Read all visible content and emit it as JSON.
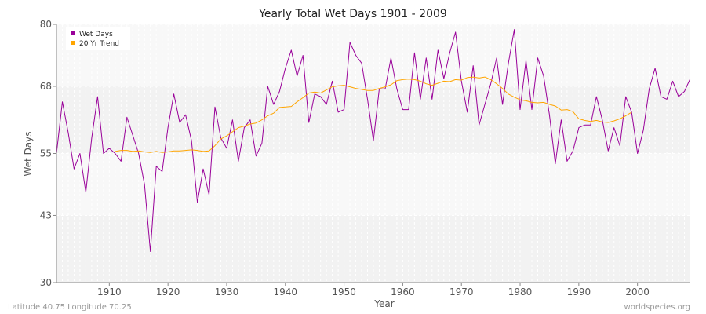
{
  "chart_data": {
    "type": "line",
    "title": "Yearly Total Wet Days 1901 - 2009",
    "xlabel": "Year",
    "ylabel": "Wet Days",
    "xlim": [
      1901,
      2009
    ],
    "ylim": [
      30,
      80
    ],
    "yticks": [
      30,
      43,
      55,
      68,
      80
    ],
    "xticks": [
      1910,
      1920,
      1930,
      1940,
      1950,
      1960,
      1970,
      1980,
      1990,
      2000
    ],
    "grid": true,
    "legend_position": "top-left",
    "colors": {
      "wet_days": "#990099",
      "trend": "#FFA500"
    },
    "series": [
      {
        "name": "Wet Days",
        "x": [
          1901,
          1902,
          1903,
          1904,
          1905,
          1906,
          1907,
          1908,
          1909,
          1910,
          1911,
          1912,
          1913,
          1914,
          1915,
          1916,
          1917,
          1918,
          1919,
          1920,
          1921,
          1922,
          1923,
          1924,
          1925,
          1926,
          1927,
          1928,
          1929,
          1930,
          1931,
          1932,
          1933,
          1934,
          1935,
          1936,
          1937,
          1938,
          1939,
          1940,
          1941,
          1942,
          1943,
          1944,
          1945,
          1946,
          1947,
          1948,
          1949,
          1950,
          1951,
          1952,
          1953,
          1954,
          1955,
          1956,
          1957,
          1958,
          1959,
          1960,
          1961,
          1962,
          1963,
          1964,
          1965,
          1966,
          1967,
          1968,
          1969,
          1970,
          1971,
          1972,
          1973,
          1974,
          1975,
          1976,
          1977,
          1978,
          1979,
          1980,
          1981,
          1982,
          1983,
          1984,
          1985,
          1986,
          1987,
          1988,
          1989,
          1990,
          1991,
          1992,
          1993,
          1994,
          1995,
          1996,
          1997,
          1998,
          1999,
          2000,
          2001,
          2002,
          2003,
          2004,
          2005,
          2006,
          2007,
          2008,
          2009
        ],
        "values": [
          55,
          65,
          59,
          52,
          55,
          47.5,
          58,
          66,
          55,
          56,
          55,
          53.5,
          62,
          58.5,
          55,
          49,
          36,
          52.5,
          51.5,
          60,
          66.5,
          61,
          62.5,
          57.5,
          45.5,
          52,
          47,
          64,
          58,
          56,
          61.5,
          53.5,
          60,
          61.5,
          54.5,
          57,
          68,
          64.5,
          67,
          71.5,
          75,
          70,
          74,
          61,
          66.5,
          66,
          64.5,
          69,
          63,
          63.5,
          76.5,
          74,
          72.5,
          65.5,
          57.5,
          67.5,
          67.5,
          73.5,
          67.5,
          63.5,
          63.5,
          74.5,
          65.5,
          73.5,
          65.5,
          75,
          69.5,
          74.5,
          78.5,
          69,
          63,
          72,
          60.5,
          64.5,
          68.5,
          73.5,
          64.5,
          72.5,
          79,
          63.5,
          73,
          63.5,
          73.5,
          70,
          62.5,
          53,
          61.5,
          53.5,
          55.5,
          60,
          60.5,
          60.5,
          66,
          61.5,
          55.5,
          60,
          56.5,
          66,
          63,
          55,
          59.5,
          67.5,
          71.5,
          66,
          65.5,
          69,
          66,
          67,
          69.5
        ]
      },
      {
        "name": "20 Yr Trend",
        "x": [
          1911,
          1912,
          1913,
          1914,
          1915,
          1916,
          1917,
          1918,
          1919,
          1920,
          1921,
          1922,
          1923,
          1924,
          1925,
          1926,
          1927,
          1928,
          1929,
          1930,
          1931,
          1932,
          1933,
          1934,
          1935,
          1936,
          1937,
          1938,
          1939,
          1940,
          1941,
          1942,
          1943,
          1944,
          1945,
          1946,
          1947,
          1948,
          1949,
          1950,
          1951,
          1952,
          1953,
          1954,
          1955,
          1956,
          1957,
          1958,
          1959,
          1960,
          1961,
          1962,
          1963,
          1964,
          1965,
          1966,
          1967,
          1968,
          1969,
          1970,
          1971,
          1972,
          1973,
          1974,
          1975,
          1976,
          1977,
          1978,
          1979,
          1980,
          1981,
          1982,
          1983,
          1984,
          1985,
          1986,
          1987,
          1988,
          1989,
          1990,
          1991,
          1992,
          1993,
          1994,
          1995,
          1996,
          1997,
          1998,
          1999
        ],
        "values": [
          55.4,
          55.6,
          55.6,
          55.4,
          55.5,
          55.3,
          55.2,
          55.4,
          55.2,
          55.3,
          55.5,
          55.5,
          55.6,
          55.7,
          55.6,
          55.4,
          55.5,
          56.5,
          57.8,
          58.4,
          59.2,
          60.0,
          60.3,
          60.7,
          60.9,
          61.5,
          62.3,
          62.8,
          63.9,
          64.0,
          64.1,
          65.0,
          65.8,
          66.7,
          66.9,
          66.7,
          67.3,
          67.9,
          68.1,
          68.2,
          67.9,
          67.6,
          67.4,
          67.2,
          67.2,
          67.6,
          67.9,
          68.3,
          69.1,
          69.3,
          69.4,
          69.3,
          69.0,
          68.5,
          68.2,
          68.6,
          69.0,
          68.9,
          69.3,
          69.2,
          69.7,
          69.8,
          69.6,
          69.8,
          69.3,
          68.5,
          67.6,
          66.5,
          65.9,
          65.4,
          65.2,
          64.9,
          64.8,
          64.9,
          64.5,
          64.2,
          63.4,
          63.5,
          63.1,
          61.7,
          61.4,
          61.2,
          61.4,
          61.1,
          61.0,
          61.3,
          61.7,
          62.3,
          63.0
        ]
      }
    ]
  },
  "footer": {
    "left": "Latitude 40.75 Longitude 70.25",
    "right": "worldspecies.org"
  }
}
